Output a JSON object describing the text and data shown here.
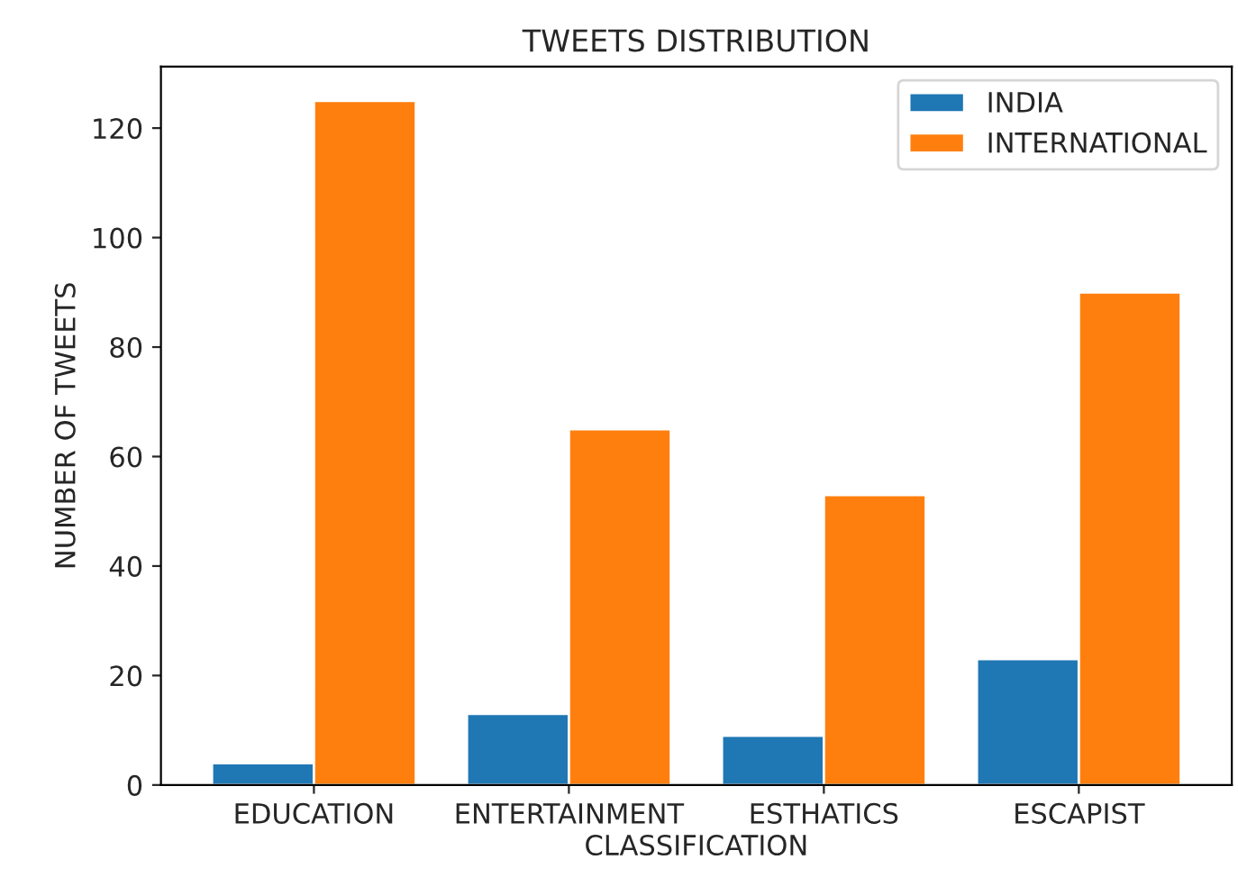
{
  "chart_data": {
    "type": "bar",
    "title": "TWEETS DISTRIBUTION",
    "xlabel": "CLASSIFICATION",
    "ylabel": "NUMBER OF TWEETS",
    "categories": [
      "EDUCATION",
      "ENTERTAINMENT",
      "ESTHATICS",
      "ESCAPIST"
    ],
    "series": [
      {
        "name": "INDIA",
        "color": "#1f77b4",
        "values": [
          4,
          13,
          9,
          23
        ]
      },
      {
        "name": "INTERNATIONAL",
        "color": "#ff7f0e",
        "values": [
          125,
          65,
          53,
          90
        ]
      }
    ],
    "ylim": [
      0,
      131.25
    ],
    "yticks": [
      0,
      20,
      40,
      60,
      80,
      100,
      120
    ],
    "legend": "top right"
  }
}
